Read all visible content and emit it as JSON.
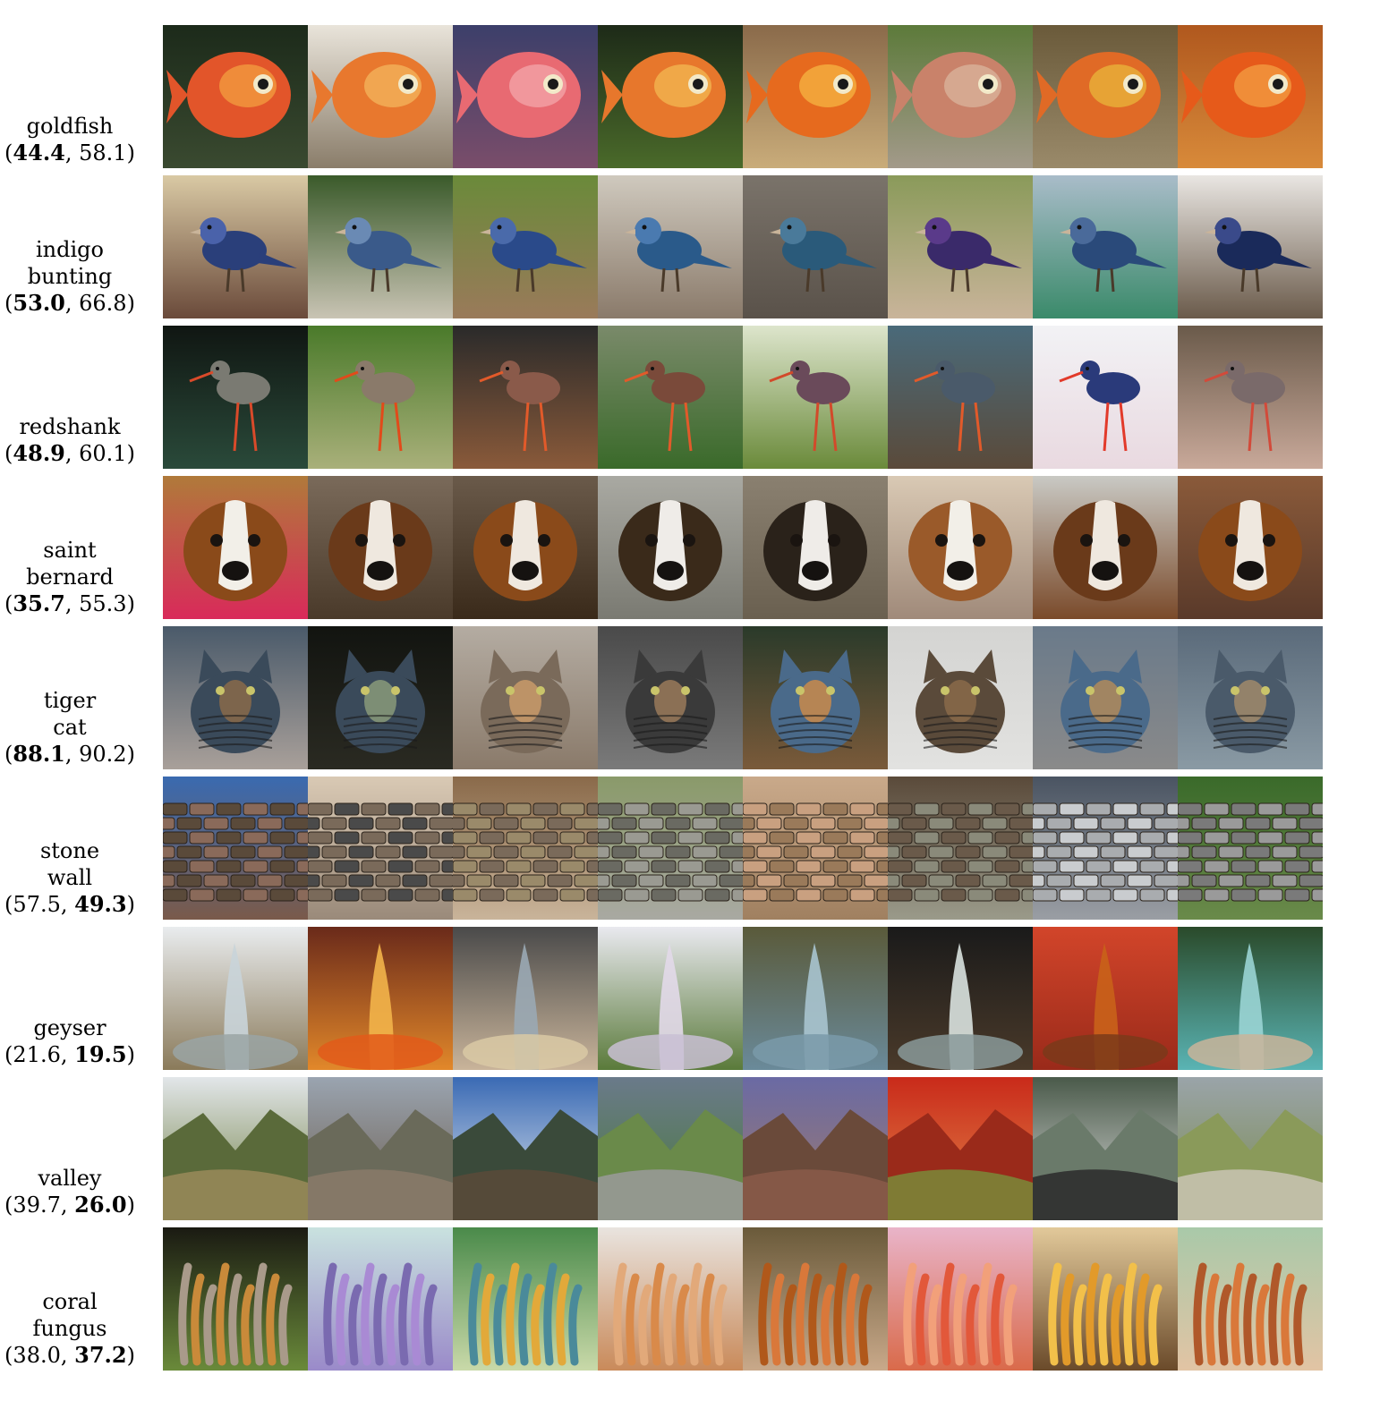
{
  "rows": [
    {
      "name": [
        "goldfish"
      ],
      "score_a": "44.4",
      "score_b": "58.1",
      "bold": "a",
      "tiles": [
        {
          "bg": "#1c2a1a",
          "bg2": "#3a4a30",
          "subject": "fish",
          "c1": "#e2552a",
          "c2": "#f29a3e"
        },
        {
          "bg": "#e9e4da",
          "bg2": "#8a7d6a",
          "subject": "fish",
          "c1": "#e8782e",
          "c2": "#f2b25a"
        },
        {
          "bg": "#3c3f6a",
          "bg2": "#7a4d6a",
          "subject": "fish",
          "c1": "#e86a72",
          "c2": "#f3a3a6"
        },
        {
          "bg": "#1d2a18",
          "bg2": "#4a6a2a",
          "subject": "fish",
          "c1": "#e7772c",
          "c2": "#f3b450"
        },
        {
          "bg": "#8a6a4a",
          "bg2": "#c9ac7a",
          "subject": "fish",
          "c1": "#e66a1e",
          "c2": "#f5b040"
        },
        {
          "bg": "#5c7a3a",
          "bg2": "#a39a8a",
          "subject": "fish",
          "c1": "#c9826a",
          "c2": "#d9b29a"
        },
        {
          "bg": "#6a5a3a",
          "bg2": "#9a8a6a",
          "subject": "fish",
          "c1": "#e06a26",
          "c2": "#e9b23a"
        },
        {
          "bg": "#b0581e",
          "bg2": "#d88a3a",
          "subject": "fish",
          "c1": "#e65a1a",
          "c2": "#f29a40"
        }
      ]
    },
    {
      "name": [
        "indigo",
        "bunting"
      ],
      "score_a": "53.0",
      "score_b": "66.8",
      "bold": "a",
      "tiles": [
        {
          "bg": "#d9c9a4",
          "bg2": "#6a4a3a",
          "subject": "bird",
          "c1": "#2a3f7a",
          "c2": "#4a62aa"
        },
        {
          "bg": "#3a5a2a",
          "bg2": "#c9c4b4",
          "subject": "bird",
          "c1": "#3a5a8a",
          "c2": "#6a8ab4"
        },
        {
          "bg": "#6a8a3a",
          "bg2": "#9a7a5a",
          "subject": "bird",
          "c1": "#2a4a8a",
          "c2": "#4a6aaa"
        },
        {
          "bg": "#cfc9be",
          "bg2": "#8a7a6a",
          "subject": "bird",
          "c1": "#2a5a8a",
          "c2": "#4a7ab0"
        },
        {
          "bg": "#7a736a",
          "bg2": "#5a524a",
          "subject": "bird",
          "c1": "#2a5a7a",
          "c2": "#4a7a9a"
        },
        {
          "bg": "#8a9a5a",
          "bg2": "#c9b49a",
          "subject": "bird",
          "c1": "#3a2a6a",
          "c2": "#5a3a8a"
        },
        {
          "bg": "#a9bcc9",
          "bg2": "#3a8a6a",
          "subject": "bird",
          "c1": "#2a4a7a",
          "c2": "#4a6a9a"
        },
        {
          "bg": "#e9e6e2",
          "bg2": "#6a5a4a",
          "subject": "bird",
          "c1": "#1a2a5a",
          "c2": "#3a4a8a"
        }
      ]
    },
    {
      "name": [
        "redshank"
      ],
      "score_a": "48.9",
      "score_b": "60.1",
      "bold": "a",
      "tiles": [
        {
          "bg": "#101612",
          "bg2": "#2a4a3a",
          "subject": "wader",
          "c1": "#7a7a72",
          "c2": "#d94a2a"
        },
        {
          "bg": "#4a7a2a",
          "bg2": "#a9b07a",
          "subject": "wader",
          "c1": "#8a7a6a",
          "c2": "#e24a1a"
        },
        {
          "bg": "#2a2a2a",
          "bg2": "#8a5a3a",
          "subject": "wader",
          "c1": "#8a5a4a",
          "c2": "#e25a2a"
        },
        {
          "bg": "#7a8a6a",
          "bg2": "#3a6a2a",
          "subject": "wader",
          "c1": "#7a4a3a",
          "c2": "#e25a2a"
        },
        {
          "bg": "#dde5cc",
          "bg2": "#6a8a3a",
          "subject": "wader",
          "c1": "#6a4a5a",
          "c2": "#d24a2a"
        },
        {
          "bg": "#4a6a7a",
          "bg2": "#5a4a3a",
          "subject": "wader",
          "c1": "#4a5a6a",
          "c2": "#e25a2a"
        },
        {
          "bg": "#f2f2f5",
          "bg2": "#e9d9e0",
          "subject": "wader",
          "c1": "#2a3a7a",
          "c2": "#e23a2a"
        },
        {
          "bg": "#6a5a4a",
          "bg2": "#c9a99a",
          "subject": "wader",
          "c1": "#7a6a6a",
          "c2": "#d24a3a"
        }
      ]
    },
    {
      "name": [
        "saint",
        "bernard"
      ],
      "score_a": "35.7",
      "score_b": "55.3",
      "bold": "a",
      "tiles": [
        {
          "bg": "#b07a3a",
          "bg2": "#d92a5a",
          "subject": "dog",
          "c1": "#8a4a1a",
          "c2": "#f2efe8"
        },
        {
          "bg": "#7a6a5a",
          "bg2": "#4a3a2a",
          "subject": "dog",
          "c1": "#6a3a1a",
          "c2": "#efe8df"
        },
        {
          "bg": "#6a5a4a",
          "bg2": "#3a2a1a",
          "subject": "dog",
          "c1": "#8a4a1a",
          "c2": "#efe8df"
        },
        {
          "bg": "#a9a9a2",
          "bg2": "#7a7a72",
          "subject": "dog",
          "c1": "#3a2a1a",
          "c2": "#efece8"
        },
        {
          "bg": "#8a8070",
          "bg2": "#6a6050",
          "subject": "dog",
          "c1": "#2a221a",
          "c2": "#efece8"
        },
        {
          "bg": "#d9c9b4",
          "bg2": "#a08a7a",
          "subject": "dog",
          "c1": "#9a5a2a",
          "c2": "#f2efe8"
        },
        {
          "bg": "#c9c9c4",
          "bg2": "#7a4a2a",
          "subject": "dog",
          "c1": "#6a3a1a",
          "c2": "#efe8df"
        },
        {
          "bg": "#8a5a3a",
          "bg2": "#5a3a2a",
          "subject": "dog",
          "c1": "#8a4a1a",
          "c2": "#efe8df"
        }
      ]
    },
    {
      "name": [
        "tiger",
        "cat"
      ],
      "score_a": "88.1",
      "score_b": "90.2",
      "bold": "a",
      "tiles": [
        {
          "bg": "#4a5a6a",
          "bg2": "#a9a09a",
          "subject": "cat",
          "c1": "#3a4a5a",
          "c2": "#8a6a4a"
        },
        {
          "bg": "#121410",
          "bg2": "#2a2a22",
          "subject": "cat",
          "c1": "#3a4a5a",
          "c2": "#8a9a7a"
        },
        {
          "bg": "#b4aca2",
          "bg2": "#8a7a6a",
          "subject": "cat",
          "c1": "#7a6a5a",
          "c2": "#c99a6a"
        },
        {
          "bg": "#4a4a4a",
          "bg2": "#7a7a7a",
          "subject": "cat",
          "c1": "#3a3a3a",
          "c2": "#9a7a5a"
        },
        {
          "bg": "#2a3a2a",
          "bg2": "#7a5a3a",
          "subject": "cat",
          "c1": "#4a6a8a",
          "c2": "#c98a4a"
        },
        {
          "bg": "#d4d4d2",
          "bg2": "#e2e2e0",
          "subject": "cat",
          "c1": "#5a4a3a",
          "c2": "#8a6a4a"
        },
        {
          "bg": "#6a7a8a",
          "bg2": "#8a8a8a",
          "subject": "cat",
          "c1": "#4a6a8a",
          "c2": "#b08a5a"
        },
        {
          "bg": "#5a6a7a",
          "bg2": "#8a9aa4",
          "subject": "cat",
          "c1": "#4a5a6a",
          "c2": "#a08a6a"
        }
      ]
    },
    {
      "name": [
        "stone",
        "wall"
      ],
      "score_a": "57.5",
      "score_b": "49.3",
      "bold": "b",
      "tiles": [
        {
          "bg": "#3a6ab0",
          "bg2": "#7a5a4a",
          "subject": "wall",
          "c1": "#8a6a5a",
          "c2": "#5a4a3a"
        },
        {
          "bg": "#d9c9b4",
          "bg2": "#9a8a7a",
          "subject": "wall",
          "c1": "#4a4a4a",
          "c2": "#7a6a5a"
        },
        {
          "bg": "#8a6a4a",
          "bg2": "#c9b49a",
          "subject": "wall",
          "c1": "#7a6a5a",
          "c2": "#9a8a6a"
        },
        {
          "bg": "#8a9a6a",
          "bg2": "#a9a9a2",
          "subject": "wall",
          "c1": "#9a9a92",
          "c2": "#6a6a62"
        },
        {
          "bg": "#c9a98a",
          "bg2": "#a08060",
          "subject": "wall",
          "c1": "#9a7a5a",
          "c2": "#c9a080"
        },
        {
          "bg": "#5a4a3a",
          "bg2": "#9a9a8a",
          "subject": "wall",
          "c1": "#8a8a7a",
          "c2": "#6a5a4a"
        },
        {
          "bg": "#4a5462",
          "bg2": "#9a9ea4",
          "subject": "wall",
          "c1": "#c9cccf",
          "c2": "#a9acaf"
        },
        {
          "bg": "#3a6a2a",
          "bg2": "#6a8a4a",
          "subject": "wall",
          "c1": "#9a9a9a",
          "c2": "#7a7a7a"
        }
      ]
    },
    {
      "name": [
        "geyser"
      ],
      "score_a": "21.6",
      "score_b": "19.5",
      "bold": "b",
      "tiles": [
        {
          "bg": "#e9ecee",
          "bg2": "#8a7a5a",
          "subject": "geyser",
          "c1": "#c9d4d9",
          "c2": "#9aa4a4"
        },
        {
          "bg": "#6a2a1a",
          "bg2": "#e2882a",
          "subject": "geyser",
          "c1": "#f2b44a",
          "c2": "#e25a1a"
        },
        {
          "bg": "#4a4a4a",
          "bg2": "#c9b49a",
          "subject": "geyser",
          "c1": "#9aa9b4",
          "c2": "#d9c9a4"
        },
        {
          "bg": "#e9e9ef",
          "bg2": "#5a7a3a",
          "subject": "geyser",
          "c1": "#e2d9e9",
          "c2": "#c9c0d4"
        },
        {
          "bg": "#5a5a3a",
          "bg2": "#6a8a9a",
          "subject": "geyser",
          "c1": "#a9c4cf",
          "c2": "#7a9aa9"
        },
        {
          "bg": "#1a1a1a",
          "bg2": "#4a3a2a",
          "subject": "geyser",
          "c1": "#d9e2df",
          "c2": "#8a9a9a"
        },
        {
          "bg": "#d2452a",
          "bg2": "#9a2a1a",
          "subject": "geyser",
          "c1": "#c9621a",
          "c2": "#7a3a1a"
        },
        {
          "bg": "#2a4a2a",
          "bg2": "#5ab4b4",
          "subject": "geyser",
          "c1": "#9ad4d4",
          "c2": "#c9b49a"
        }
      ]
    },
    {
      "name": [
        "valley"
      ],
      "score_a": "39.7",
      "score_b": "26.0",
      "bold": "b",
      "tiles": [
        {
          "bg": "#e2e6e9",
          "bg2": "#6a7a3a",
          "subject": "valley",
          "c1": "#5a6a3a",
          "c2": "#9a8a5a"
        },
        {
          "bg": "#9aa4b0",
          "bg2": "#6a5a4a",
          "subject": "valley",
          "c1": "#6a6a5a",
          "c2": "#8a7a6a"
        },
        {
          "bg": "#3a6ab4",
          "bg2": "#e9eef2",
          "subject": "valley",
          "c1": "#3a4a3a",
          "c2": "#5a4a3a"
        },
        {
          "bg": "#6a7a8a",
          "bg2": "#4a7a3a",
          "subject": "valley",
          "c1": "#6a8a4a",
          "c2": "#9a9a9a"
        },
        {
          "bg": "#6a6aa4",
          "bg2": "#a07a6a",
          "subject": "valley",
          "c1": "#6a4a3a",
          "c2": "#8a5a4a"
        },
        {
          "bg": "#c92a1a",
          "bg2": "#e2884a",
          "subject": "valley",
          "c1": "#9a2a1a",
          "c2": "#7a8a3a"
        },
        {
          "bg": "#4a5a4a",
          "bg2": "#e2e2e2",
          "subject": "valley",
          "c1": "#6a7a6a",
          "c2": "#2a2a2a"
        },
        {
          "bg": "#9aa4a9",
          "bg2": "#7a8a4a",
          "subject": "valley",
          "c1": "#8a9a5a",
          "c2": "#c9c4b4"
        }
      ]
    },
    {
      "name": [
        "coral",
        "fungus"
      ],
      "score_a": "38.0",
      "score_b": "37.2",
      "bold": "b",
      "tiles": [
        {
          "bg": "#1a1a12",
          "bg2": "#6a8a3a",
          "subject": "fungus",
          "c1": "#c98a3a",
          "c2": "#a99a8a"
        },
        {
          "bg": "#c9e2df",
          "bg2": "#9a8ac9",
          "subject": "fungus",
          "c1": "#a98ad4",
          "c2": "#7a6ab0"
        },
        {
          "bg": "#4a8a4a",
          "bg2": "#c9d9a9",
          "subject": "fungus",
          "c1": "#e2a93a",
          "c2": "#4a8a9a"
        },
        {
          "bg": "#e9e4df",
          "bg2": "#c98a5a",
          "subject": "fungus",
          "c1": "#d98a4a",
          "c2": "#e2a97a"
        },
        {
          "bg": "#6a5a3a",
          "bg2": "#c9a98a",
          "subject": "fungus",
          "c1": "#d9783a",
          "c2": "#b0581a"
        },
        {
          "bg": "#e9b4c9",
          "bg2": "#d96a4a",
          "subject": "fungus",
          "c1": "#e2583a",
          "c2": "#f2a07a"
        },
        {
          "bg": "#e2c99a",
          "bg2": "#6a4a2a",
          "subject": "fungus",
          "c1": "#e29a2a",
          "c2": "#f2c04a"
        },
        {
          "bg": "#a9c9a9",
          "bg2": "#e2c4a4",
          "subject": "fungus",
          "c1": "#d9783a",
          "c2": "#b0582a"
        }
      ]
    }
  ]
}
